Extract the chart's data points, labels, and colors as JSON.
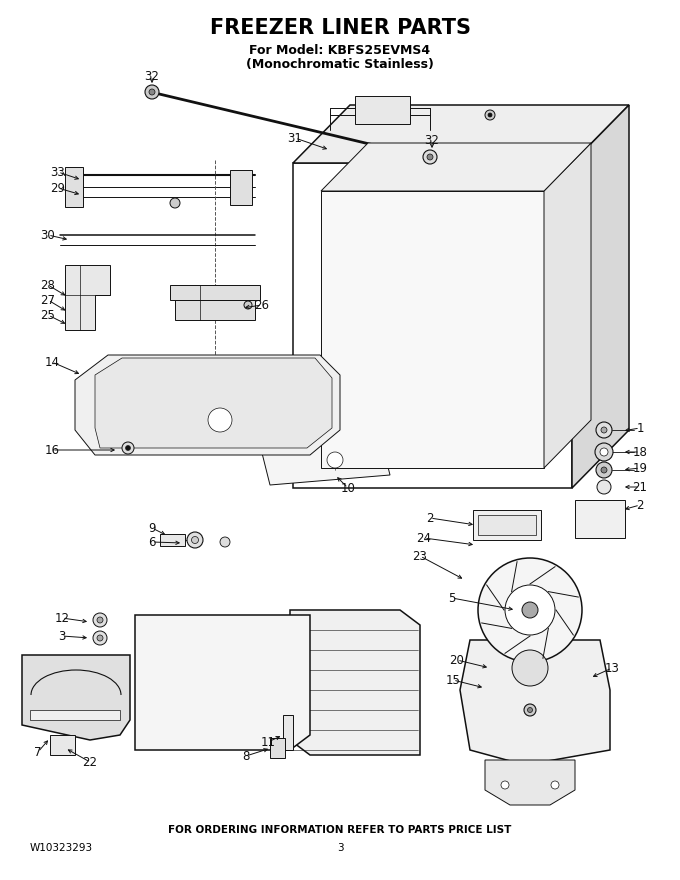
{
  "title": "FREEZER LINER PARTS",
  "subtitle_line1": "For Model: KBFS25EVMS4",
  "subtitle_line2": "(Monochromatic Stainless)",
  "footer_center": "FOR ORDERING INFORMATION REFER TO PARTS PRICE LIST",
  "footer_left": "W10323293",
  "footer_page": "3",
  "bg_color": "#ffffff",
  "title_fontsize": 15,
  "subtitle_fontsize": 9,
  "footer_fontsize": 7.5,
  "label_fontsize": 8.5
}
